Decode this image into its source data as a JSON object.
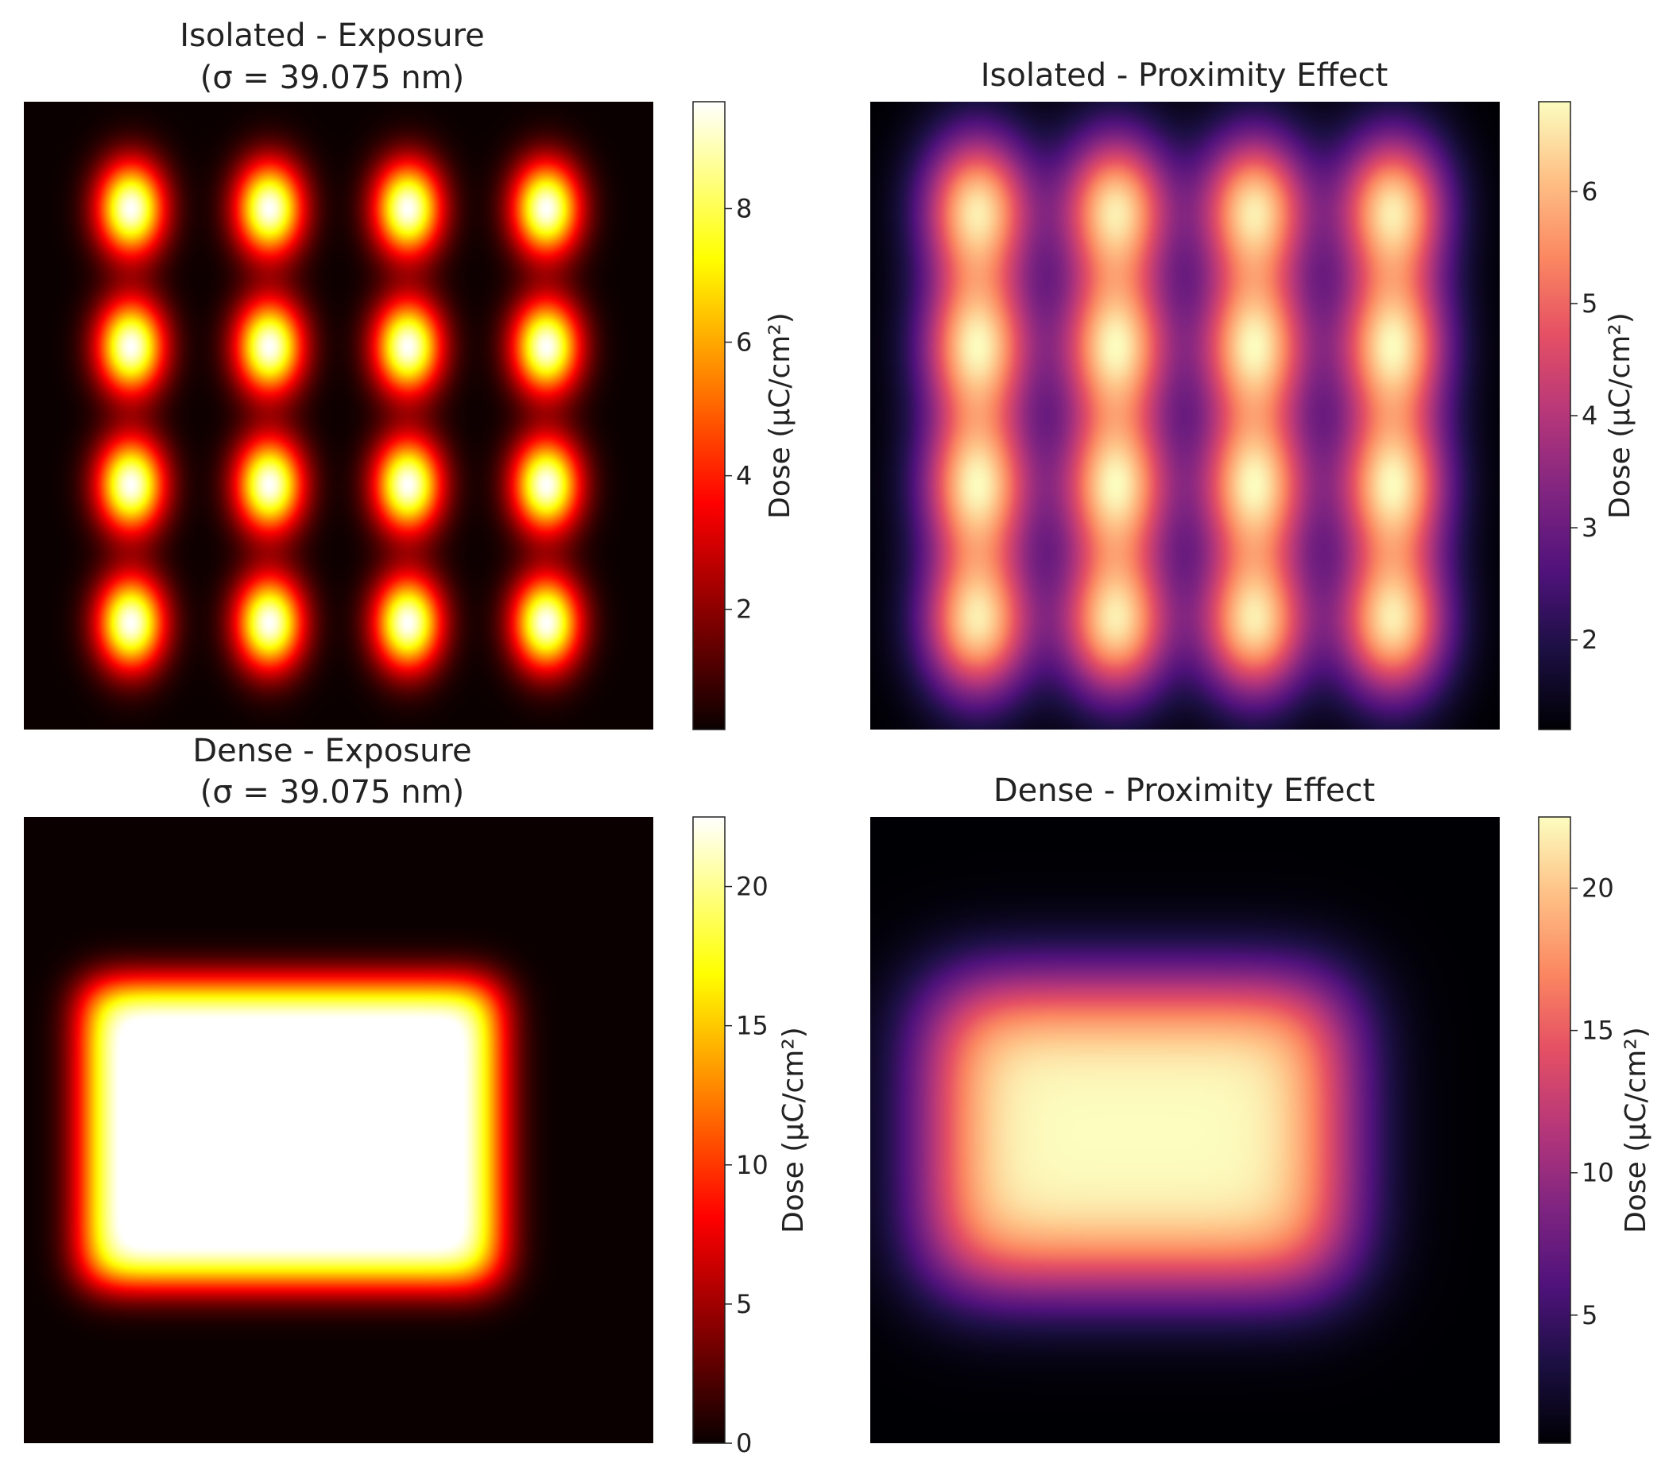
{
  "chart_data": [
    {
      "type": "heatmap",
      "title": "Isolated - Exposure",
      "subtitle": "(σ = 39.075 nm)",
      "colormap": "hot",
      "pattern": "isolated",
      "spread": "narrow",
      "colorbar": {
        "label": "Dose (μC/cm²)",
        "min": 0.2,
        "max": 9.6,
        "ticks": [
          2,
          4,
          6,
          8
        ]
      }
    },
    {
      "type": "heatmap",
      "title": "Isolated - Proximity Effect",
      "subtitle": "",
      "colormap": "magma",
      "pattern": "isolated",
      "spread": "wide",
      "colorbar": {
        "label": "Dose (μC/cm²)",
        "min": 1.2,
        "max": 6.8,
        "ticks": [
          2,
          3,
          4,
          5,
          6
        ]
      }
    },
    {
      "type": "heatmap",
      "title": "Dense - Exposure",
      "subtitle": "(σ = 39.075 nm)",
      "colormap": "hot",
      "pattern": "dense",
      "spread": "narrow",
      "colorbar": {
        "label": "Dose (μC/cm²)",
        "min": 0,
        "max": 22.5,
        "ticks": [
          0,
          5,
          10,
          15,
          20
        ]
      }
    },
    {
      "type": "heatmap",
      "title": "Dense - Proximity Effect",
      "subtitle": "",
      "colormap": "magma",
      "pattern": "dense",
      "spread": "wide",
      "colorbar": {
        "label": "Dose (μC/cm²)",
        "min": 0.5,
        "max": 22.5,
        "ticks": [
          5,
          10,
          15,
          20
        ]
      }
    }
  ]
}
